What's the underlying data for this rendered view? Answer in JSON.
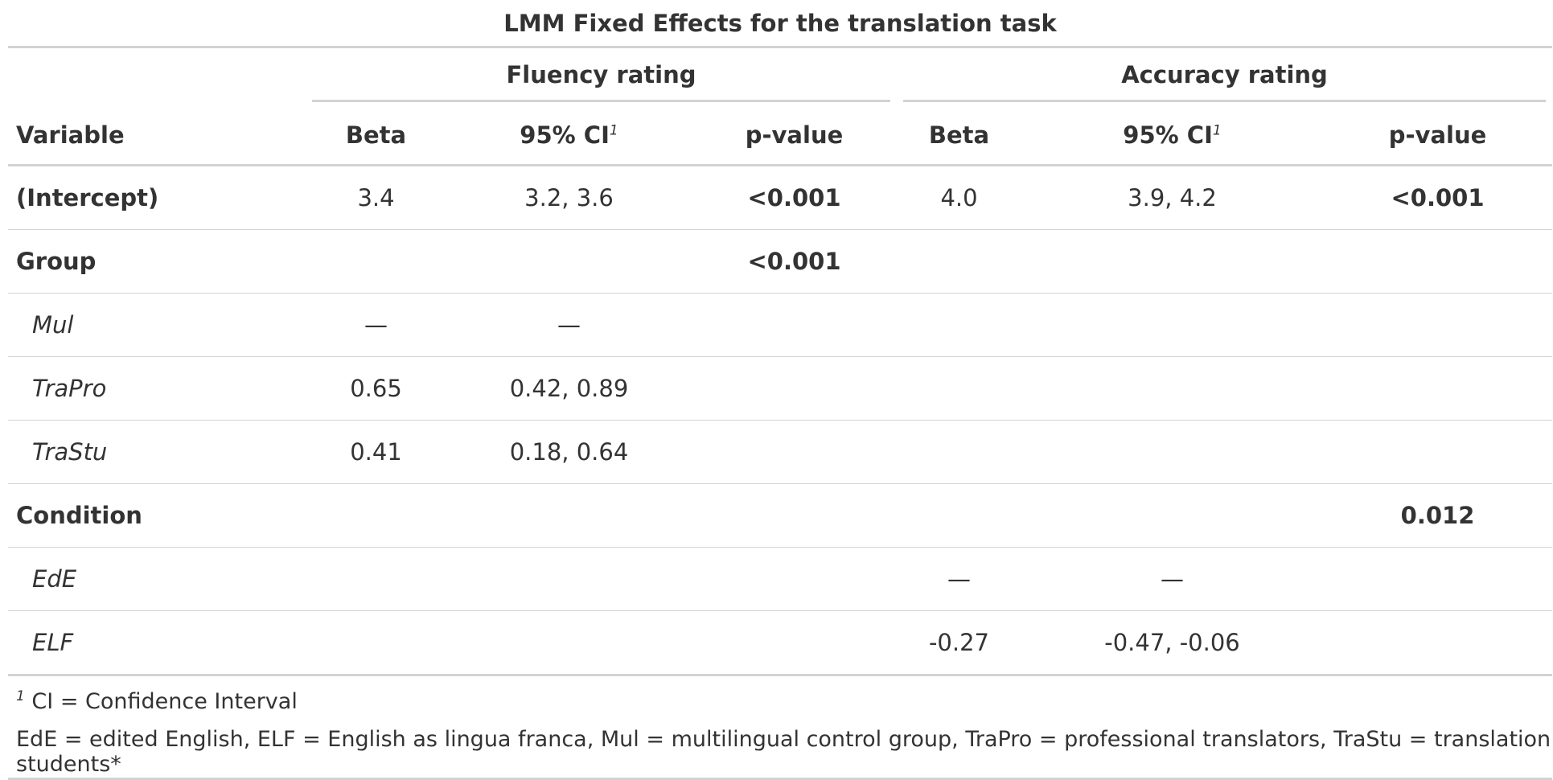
{
  "table": {
    "title": "LMM Fixed Effects for the translation task",
    "spanners": {
      "fluency": "Fluency rating",
      "accuracy": "Accuracy rating"
    },
    "columns": {
      "variable": "Variable",
      "beta_1": "Beta",
      "ci_1": "95% CI",
      "p_1": "p-value",
      "beta_2": "Beta",
      "ci_2": "95% CI",
      "p_2": "p-value",
      "ci_footnote_mark": "1"
    },
    "rows": [
      {
        "label": "(Intercept)",
        "beta_1": "3.4",
        "ci_1": "3.2, 3.6",
        "p_1": "<0.001",
        "beta_2": "4.0",
        "ci_2": "3.9, 4.2",
        "p_2": "<0.001"
      },
      {
        "label": "Group",
        "beta_1": "",
        "ci_1": "",
        "p_1": "<0.001",
        "beta_2": "",
        "ci_2": "",
        "p_2": ""
      },
      {
        "label": "Mul",
        "beta_1": "—",
        "ci_1": "—",
        "p_1": "",
        "beta_2": "",
        "ci_2": "",
        "p_2": ""
      },
      {
        "label": "TraPro",
        "beta_1": "0.65",
        "ci_1": "0.42, 0.89",
        "p_1": "",
        "beta_2": "",
        "ci_2": "",
        "p_2": ""
      },
      {
        "label": "TraStu",
        "beta_1": "0.41",
        "ci_1": "0.18, 0.64",
        "p_1": "",
        "beta_2": "",
        "ci_2": "",
        "p_2": ""
      },
      {
        "label": "Condition",
        "beta_1": "",
        "ci_1": "",
        "p_1": "",
        "beta_2": "",
        "ci_2": "",
        "p_2": "0.012"
      },
      {
        "label": "EdE",
        "beta_1": "",
        "ci_1": "",
        "p_1": "",
        "beta_2": "—",
        "ci_2": "—",
        "p_2": ""
      },
      {
        "label": "ELF",
        "beta_1": "",
        "ci_1": "",
        "p_1": "",
        "beta_2": "-0.27",
        "ci_2": "-0.47, -0.06",
        "p_2": ""
      }
    ],
    "footnotes": {
      "ci_mark": "1",
      "ci_text": "CI = Confidence Interval",
      "abbreviations": "EdE = edited English, ELF = English as lingua franca, Mul = multilingual control group, TraPro = professional translators, TraStu = translation students*"
    }
  }
}
